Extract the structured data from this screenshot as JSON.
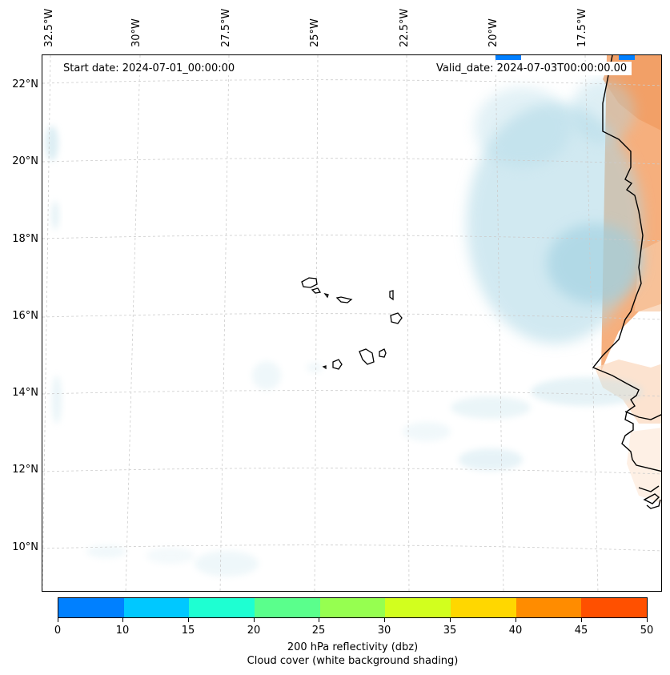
{
  "map": {
    "lon_labels": [
      "32.5°W",
      "30°W",
      "27.5°W",
      "25°W",
      "22.5°W",
      "20°W",
      "17.5°W"
    ],
    "lat_labels": [
      "22°N",
      "20°N",
      "18°N",
      "16°N",
      "14°N",
      "12°N",
      "10°N"
    ],
    "start_date": "Start date: 2024-07-01_00:00:00",
    "valid_date": "Valid_date: 2024-07-03T00:00:00.00",
    "colors": {
      "cloud": "#add8e6",
      "land": "#f4a36b",
      "coast": "#000000",
      "grid": "#cccccc"
    }
  },
  "colorbar": {
    "ticks": [
      "0",
      "10",
      "15",
      "20",
      "25",
      "30",
      "35",
      "40",
      "45",
      "50"
    ],
    "colors": [
      "#0080ff",
      "#00c8ff",
      "#1effd2",
      "#5aff8c",
      "#96ff50",
      "#d2ff1e",
      "#ffd700",
      "#ff8c00",
      "#ff5000"
    ],
    "label_line1": "200 hPa reflectivity (dbz)",
    "label_line2": "Cloud cover (white background shading)"
  }
}
